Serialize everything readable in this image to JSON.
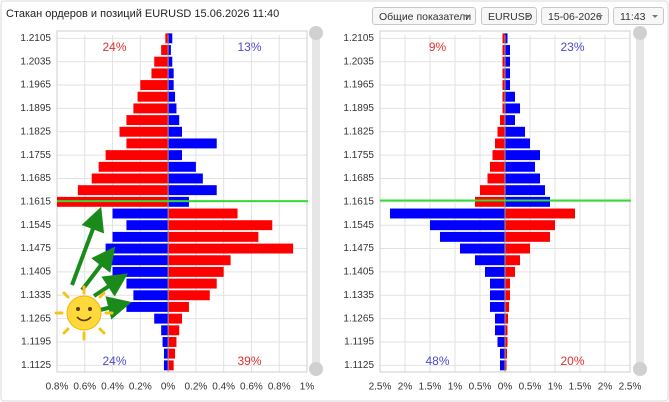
{
  "header": {
    "title": "Стакан ордеров и позиций EURUSD 15.06.2026 11:40",
    "controls": [
      "Общие показатели",
      "EURUSD",
      "15-06-2026",
      "11:43"
    ]
  },
  "chart_data": [
    {
      "type": "bar",
      "orientation": "horizontal",
      "grid": true,
      "y": [
        1.2105,
        1.207,
        1.2035,
        1.2,
        1.1965,
        1.193,
        1.1895,
        1.186,
        1.1825,
        1.179,
        1.1755,
        1.172,
        1.1685,
        1.165,
        1.1615,
        1.158,
        1.1545,
        1.151,
        1.1475,
        1.144,
        1.1405,
        1.137,
        1.1335,
        1.13,
        1.1265,
        1.123,
        1.1195,
        1.116,
        1.1125
      ],
      "series": [
        {
          "color": "#ff0000",
          "values": [
            -0.02,
            -0.05,
            -0.1,
            -0.12,
            -0.2,
            -0.22,
            -0.25,
            -0.3,
            -0.35,
            -0.3,
            -0.45,
            -0.5,
            -0.55,
            -0.65,
            -0.8,
            0.5,
            0.75,
            0.65,
            0.9,
            0.45,
            0.4,
            0.35,
            0.3,
            0.15,
            0.1,
            0.08,
            0.06,
            0.05,
            0.04
          ]
        },
        {
          "color": "#0000ff",
          "values": [
            0.03,
            0.02,
            0.03,
            0.04,
            0.04,
            0.05,
            0.06,
            0.08,
            0.1,
            0.35,
            0.1,
            0.2,
            0.25,
            0.35,
            0.15,
            -0.4,
            -0.3,
            -0.4,
            -0.45,
            -0.5,
            -0.4,
            -0.3,
            -0.25,
            -0.3,
            -0.1,
            -0.05,
            -0.04,
            -0.03,
            -0.03
          ]
        }
      ],
      "xlim": [
        -0.8,
        1.0
      ],
      "xticks": [
        {
          "value": -0.8,
          "label": "0.8%"
        },
        {
          "value": -0.6,
          "label": "0.6%"
        },
        {
          "value": -0.4,
          "label": "0.4%"
        },
        {
          "value": -0.2,
          "label": "0.2%"
        },
        {
          "value": 0,
          "label": "0%"
        },
        {
          "value": 0.2,
          "label": "0.2%"
        },
        {
          "value": 0.4,
          "label": "0.4%"
        },
        {
          "value": 0.6,
          "label": "0.6%"
        },
        {
          "value": 0.8,
          "label": "0.8%"
        },
        {
          "value": 1.0,
          "label": "1%"
        }
      ],
      "ylim": [
        1.1105,
        1.2115
      ],
      "yticks": [
        1.2105,
        1.2035,
        1.1965,
        1.1895,
        1.1825,
        1.1755,
        1.1685,
        1.1615,
        1.1545,
        1.1475,
        1.1405,
        1.1335,
        1.1265,
        1.1195,
        1.1125
      ],
      "current_price": 1.1617,
      "current_price_color": "#33dd33",
      "annotations": [
        {
          "text": "24%",
          "position": "top-left",
          "color": "#e03030"
        },
        {
          "text": "13%",
          "position": "top-right",
          "color": "#4a4ad0"
        },
        {
          "text": "24%",
          "position": "bottom-left",
          "color": "#4a4ad0"
        },
        {
          "text": "39%",
          "position": "bottom-right",
          "color": "#e03030"
        }
      ]
    },
    {
      "type": "bar",
      "orientation": "horizontal",
      "grid": true,
      "y": [
        1.2105,
        1.207,
        1.2035,
        1.2,
        1.1965,
        1.193,
        1.1895,
        1.186,
        1.1825,
        1.179,
        1.1755,
        1.172,
        1.1685,
        1.165,
        1.1615,
        1.158,
        1.1545,
        1.151,
        1.1475,
        1.144,
        1.1405,
        1.137,
        1.1335,
        1.13,
        1.1265,
        1.123,
        1.1195,
        1.116,
        1.1125
      ],
      "series": [
        {
          "color": "#ff0000",
          "values": [
            -0.05,
            -0.05,
            -0.05,
            -0.05,
            -0.05,
            -0.05,
            -0.05,
            -0.1,
            -0.15,
            -0.2,
            -0.25,
            -0.3,
            -0.35,
            -0.5,
            -0.6,
            1.4,
            1.0,
            0.9,
            0.5,
            0.3,
            0.2,
            0.1,
            0.1,
            0.08,
            0.06,
            0.05,
            0.05,
            0.04,
            0.03
          ]
        },
        {
          "color": "#0000ff",
          "values": [
            0.05,
            0.1,
            0.1,
            0.1,
            0.1,
            0.2,
            0.3,
            0.2,
            0.4,
            0.5,
            0.7,
            0.6,
            0.7,
            0.8,
            0.9,
            -2.3,
            -1.5,
            -1.3,
            -0.9,
            -0.6,
            -0.4,
            -0.3,
            -0.3,
            -0.3,
            -0.2,
            -0.2,
            -0.15,
            -0.1,
            -0.1
          ]
        }
      ],
      "xlim": [
        -2.5,
        2.5
      ],
      "xticks": [
        {
          "value": -2.5,
          "label": "2.5%"
        },
        {
          "value": -2,
          "label": "2%"
        },
        {
          "value": -1.5,
          "label": "1.5%"
        },
        {
          "value": -1,
          "label": "1%"
        },
        {
          "value": -0.5,
          "label": "0.5%"
        },
        {
          "value": 0,
          "label": "0%"
        },
        {
          "value": 0.5,
          "label": "0.5%"
        },
        {
          "value": 1,
          "label": "1%"
        },
        {
          "value": 1.5,
          "label": "1.5%"
        },
        {
          "value": 2,
          "label": "2%"
        },
        {
          "value": 2.5,
          "label": "2.5%"
        }
      ],
      "ylim": [
        1.1105,
        1.2115
      ],
      "yticks": [
        1.2105,
        1.2035,
        1.1965,
        1.1895,
        1.1825,
        1.1755,
        1.1685,
        1.1615,
        1.1545,
        1.1475,
        1.1405,
        1.1335,
        1.1265,
        1.1195,
        1.1125
      ],
      "current_price": 1.1619,
      "current_price_color": "#33dd33",
      "annotations": [
        {
          "text": "9%",
          "position": "top-left",
          "color": "#e03030"
        },
        {
          "text": "23%",
          "position": "top-right",
          "color": "#4a4ad0"
        },
        {
          "text": "48%",
          "position": "bottom-left",
          "color": "#4a4ad0"
        },
        {
          "text": "20%",
          "position": "bottom-right",
          "color": "#e03030"
        }
      ]
    }
  ]
}
